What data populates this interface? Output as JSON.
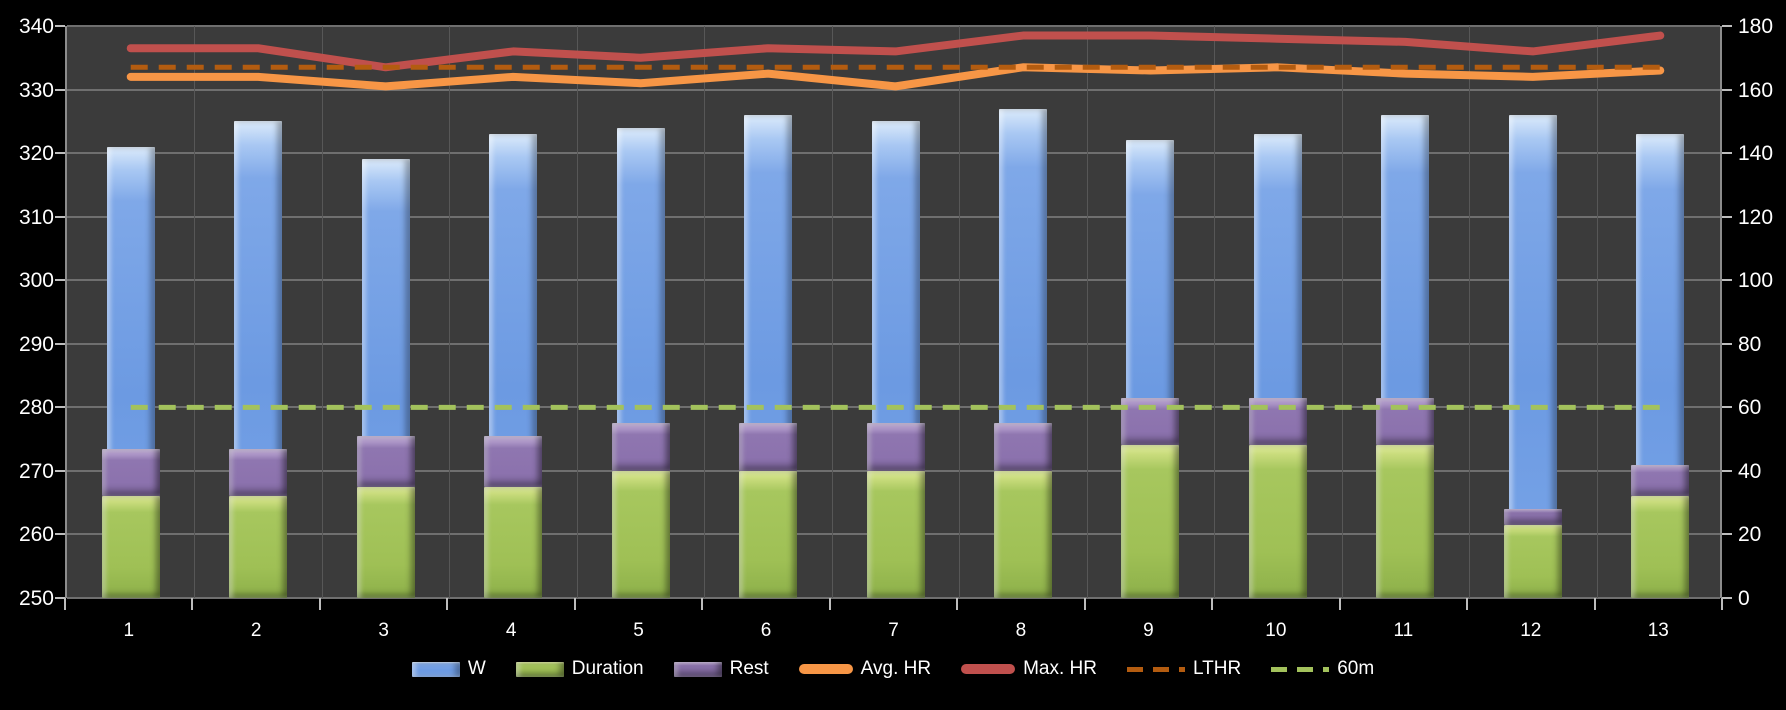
{
  "chart_data": {
    "type": "bar",
    "subtype": "combo-bar-line-dual-axis",
    "categories": [
      "1",
      "2",
      "3",
      "4",
      "5",
      "6",
      "7",
      "8",
      "9",
      "10",
      "11",
      "12",
      "13"
    ],
    "left_axis": {
      "min": 250,
      "max": 340,
      "step": 10,
      "tick_labels": [
        "250",
        "260",
        "270",
        "280",
        "290",
        "300",
        "310",
        "320",
        "330",
        "340"
      ]
    },
    "right_axis": {
      "min": 0,
      "max": 180,
      "step": 20,
      "tick_labels": [
        "0",
        "20",
        "40",
        "60",
        "80",
        "100",
        "120",
        "140",
        "160",
        "180"
      ]
    },
    "series": [
      {
        "name": "W",
        "type": "bar",
        "axis": "left",
        "values": [
          321,
          325,
          319,
          323,
          324,
          326,
          325,
          327,
          322,
          323,
          326,
          326,
          323
        ]
      },
      {
        "name": "Duration",
        "type": "bar",
        "axis": "right",
        "stack": "time",
        "values": [
          32,
          32,
          35,
          35,
          40,
          40,
          40,
          40,
          48,
          48,
          48,
          23,
          32
        ]
      },
      {
        "name": "Rest",
        "type": "bar",
        "axis": "right",
        "stack": "time",
        "values": [
          15,
          15,
          16,
          16,
          15,
          15,
          15,
          15,
          15,
          15,
          15,
          5,
          10
        ]
      },
      {
        "name": "Avg. HR",
        "type": "line",
        "axis": "right",
        "values": [
          164,
          164,
          161,
          164,
          162,
          165,
          161,
          167,
          166,
          167,
          165,
          164,
          166
        ]
      },
      {
        "name": "Max. HR",
        "type": "line",
        "axis": "right",
        "values": [
          173,
          173,
          167,
          172,
          170,
          173,
          172,
          177,
          177,
          176,
          175,
          172,
          177
        ]
      },
      {
        "name": "LTHR",
        "type": "constant-dashed-line",
        "axis": "right",
        "value": 167
      },
      {
        "name": "60m",
        "type": "constant-dashed-line",
        "axis": "right",
        "value": 60
      }
    ],
    "legend": {
      "position": "bottom",
      "entries": [
        {
          "label": "W",
          "swatch": "bar",
          "color_key": "w_bar"
        },
        {
          "label": "Duration",
          "swatch": "bar",
          "color_key": "duration_bar"
        },
        {
          "label": "Rest",
          "swatch": "bar",
          "color_key": "rest_bar"
        },
        {
          "label": "Avg. HR",
          "swatch": "line",
          "color_key": "avg_hr_line"
        },
        {
          "label": "Max. HR",
          "swatch": "line",
          "color_key": "max_hr_line"
        },
        {
          "label": "LTHR",
          "swatch": "dash",
          "color_key": "lthr_line"
        },
        {
          "label": "60m",
          "swatch": "dash",
          "color_key": "sixty_min_line"
        }
      ]
    },
    "grid": {
      "horizontal": true,
      "vertical": true
    },
    "title": "",
    "xlabel": "",
    "ylabel_left": "",
    "ylabel_right": "",
    "colors": {
      "background": "#000000",
      "plot_bg": "#3b3b3b",
      "gridline": "#6f6f6f",
      "gridline_vertical": "#575757",
      "tick": "#bdbdbd",
      "text": "#ffffff",
      "w_bar": "#7aa4e6",
      "duration_bar": "#9fc055",
      "rest_bar": "#8b72ad",
      "avg_hr_line": "#f79646",
      "max_hr_line": "#c0504d",
      "lthr_line": "#b35c10",
      "sixty_min_line": "#a3c25c"
    }
  }
}
